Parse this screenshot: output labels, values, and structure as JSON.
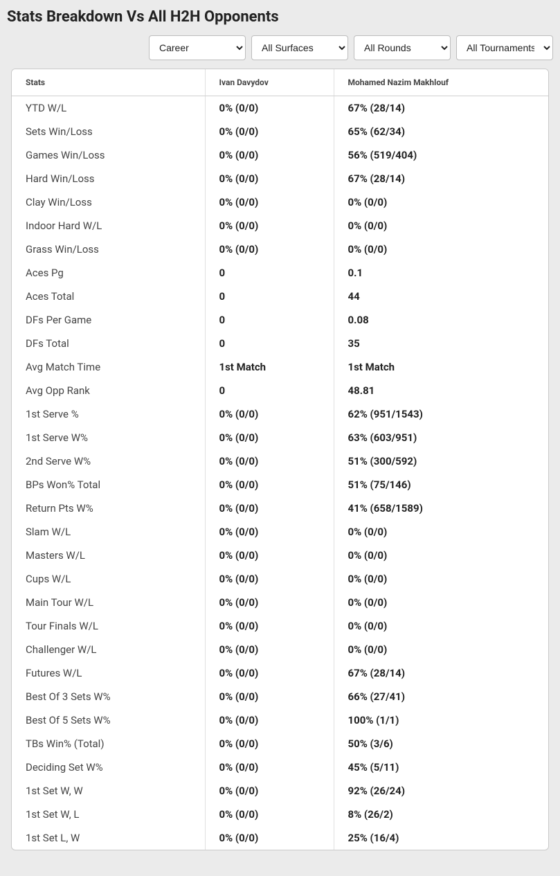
{
  "title": "Stats Breakdown Vs All H2H Opponents",
  "filters": {
    "career": {
      "selected": "Career"
    },
    "surfaces": {
      "selected": "All Surfaces"
    },
    "rounds": {
      "selected": "All Rounds"
    },
    "tournaments": {
      "selected": "All Tournaments"
    }
  },
  "table": {
    "columns": {
      "stats": "Stats",
      "p1": "Ivan Davydov",
      "p2": "Mohamed Nazim Makhlouf"
    },
    "rows": [
      {
        "stat": "YTD W/L",
        "p1": "0% (0/0)",
        "p2": "67% (28/14)"
      },
      {
        "stat": "Sets Win/Loss",
        "p1": "0% (0/0)",
        "p2": "65% (62/34)"
      },
      {
        "stat": "Games Win/Loss",
        "p1": "0% (0/0)",
        "p2": "56% (519/404)"
      },
      {
        "stat": "Hard Win/Loss",
        "p1": "0% (0/0)",
        "p2": "67% (28/14)"
      },
      {
        "stat": "Clay Win/Loss",
        "p1": "0% (0/0)",
        "p2": "0% (0/0)"
      },
      {
        "stat": "Indoor Hard W/L",
        "p1": "0% (0/0)",
        "p2": "0% (0/0)"
      },
      {
        "stat": "Grass Win/Loss",
        "p1": "0% (0/0)",
        "p2": "0% (0/0)"
      },
      {
        "stat": "Aces Pg",
        "p1": "0",
        "p2": "0.1"
      },
      {
        "stat": "Aces Total",
        "p1": "0",
        "p2": "44"
      },
      {
        "stat": "DFs Per Game",
        "p1": "0",
        "p2": "0.08"
      },
      {
        "stat": "DFs Total",
        "p1": "0",
        "p2": "35"
      },
      {
        "stat": "Avg Match Time",
        "p1": "1st Match",
        "p2": "1st Match"
      },
      {
        "stat": "Avg Opp Rank",
        "p1": "0",
        "p2": "48.81"
      },
      {
        "stat": "1st Serve %",
        "p1": "0% (0/0)",
        "p2": "62% (951/1543)"
      },
      {
        "stat": "1st Serve W%",
        "p1": "0% (0/0)",
        "p2": "63% (603/951)"
      },
      {
        "stat": "2nd Serve W%",
        "p1": "0% (0/0)",
        "p2": "51% (300/592)"
      },
      {
        "stat": "BPs Won% Total",
        "p1": "0% (0/0)",
        "p2": "51% (75/146)"
      },
      {
        "stat": "Return Pts W%",
        "p1": "0% (0/0)",
        "p2": "41% (658/1589)"
      },
      {
        "stat": "Slam W/L",
        "p1": "0% (0/0)",
        "p2": "0% (0/0)"
      },
      {
        "stat": "Masters W/L",
        "p1": "0% (0/0)",
        "p2": "0% (0/0)"
      },
      {
        "stat": "Cups W/L",
        "p1": "0% (0/0)",
        "p2": "0% (0/0)"
      },
      {
        "stat": "Main Tour W/L",
        "p1": "0% (0/0)",
        "p2": "0% (0/0)"
      },
      {
        "stat": "Tour Finals W/L",
        "p1": "0% (0/0)",
        "p2": "0% (0/0)"
      },
      {
        "stat": "Challenger W/L",
        "p1": "0% (0/0)",
        "p2": "0% (0/0)"
      },
      {
        "stat": "Futures W/L",
        "p1": "0% (0/0)",
        "p2": "67% (28/14)"
      },
      {
        "stat": "Best Of 3 Sets W%",
        "p1": "0% (0/0)",
        "p2": "66% (27/41)"
      },
      {
        "stat": "Best Of 5 Sets W%",
        "p1": "0% (0/0)",
        "p2": "100% (1/1)"
      },
      {
        "stat": "TBs Win% (Total)",
        "p1": "0% (0/0)",
        "p2": "50% (3/6)"
      },
      {
        "stat": "Deciding Set W%",
        "p1": "0% (0/0)",
        "p2": "45% (5/11)"
      },
      {
        "stat": "1st Set W, W",
        "p1": "0% (0/0)",
        "p2": "92% (26/24)"
      },
      {
        "stat": "1st Set W, L",
        "p1": "0% (0/0)",
        "p2": "8% (26/2)"
      },
      {
        "stat": "1st Set L, W",
        "p1": "0% (0/0)",
        "p2": "25% (16/4)"
      }
    ]
  },
  "style": {
    "page_bg": "#ebebeb",
    "card_bg": "#ffffff",
    "border_color": "#c9c9c9",
    "cell_border": "#e0e0e0",
    "title_fontsize": 22,
    "header_fontsize": 12,
    "cell_fontsize": 15
  }
}
